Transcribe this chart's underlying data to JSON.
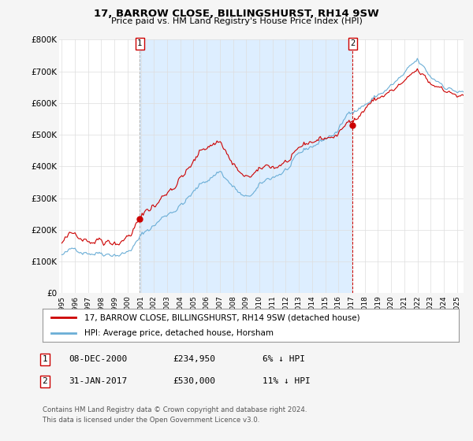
{
  "title": "17, BARROW CLOSE, BILLINGSHURST, RH14 9SW",
  "subtitle": "Price paid vs. HM Land Registry's House Price Index (HPI)",
  "legend_line1": "17, BARROW CLOSE, BILLINGSHURST, RH14 9SW (detached house)",
  "legend_line2": "HPI: Average price, detached house, Horsham",
  "table": [
    {
      "num": "1",
      "date": "08-DEC-2000",
      "price": "£234,950",
      "hpi": "6% ↓ HPI"
    },
    {
      "num": "2",
      "date": "31-JAN-2017",
      "price": "£530,000",
      "hpi": "11% ↓ HPI"
    }
  ],
  "footnote1": "Contains HM Land Registry data © Crown copyright and database right 2024.",
  "footnote2": "This data is licensed under the Open Government Licence v3.0.",
  "sale1_x": 2000.92,
  "sale1_y": 234950,
  "sale2_x": 2017.08,
  "sale2_y": 530000,
  "ylim_max": 800000,
  "xlim_start": 1994.8,
  "xlim_end": 2025.5,
  "background_color": "#f5f5f5",
  "plot_bg_color": "#ffffff",
  "shade_color": "#ddeeff",
  "grid_color": "#dddddd",
  "hpi_line_color": "#6baed6",
  "sale_line_color": "#cc0000",
  "marker_color": "#cc0000",
  "marker_box_color": "#cc0000",
  "yticks": [
    0,
    100000,
    200000,
    300000,
    400000,
    500000,
    600000,
    700000,
    800000
  ],
  "ytick_labels": [
    "£0",
    "£100K",
    "£200K",
    "£300K",
    "£400K",
    "£500K",
    "£600K",
    "£700K",
    "£800K"
  ]
}
